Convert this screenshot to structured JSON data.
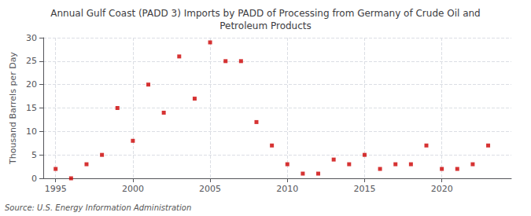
{
  "chart_data": {
    "type": "scatter",
    "title": "Annual Gulf Coast (PADD 3) Imports by PADD of Processing from Germany of Crude Oil and\nPetroleum Products",
    "ylabel": "Thousand Barrels per Day",
    "source": "Source: U.S. Energy Information Administration",
    "x": [
      1995,
      1996,
      1997,
      1998,
      1999,
      2000,
      2001,
      2002,
      2003,
      2004,
      2005,
      2006,
      2007,
      2008,
      2009,
      2010,
      2011,
      2012,
      2013,
      2014,
      2015,
      2016,
      2017,
      2018,
      2019,
      2020,
      2021,
      2022,
      2023
    ],
    "values": [
      2,
      0,
      3,
      5,
      15,
      8,
      20,
      14,
      26,
      17,
      29,
      25,
      25,
      12,
      7,
      3,
      1,
      1,
      4,
      3,
      5,
      2,
      3,
      3,
      7,
      2,
      2,
      3,
      7
    ],
    "color": "#cc0000",
    "marker": "square",
    "xlim": [
      1994.2,
      2024.5
    ],
    "xticks": [
      1995,
      2000,
      2005,
      2010,
      2015,
      2020
    ],
    "ylim": [
      0,
      30
    ],
    "yticks": [
      0,
      5,
      10,
      15,
      20,
      25,
      30
    ],
    "grid": true
  }
}
